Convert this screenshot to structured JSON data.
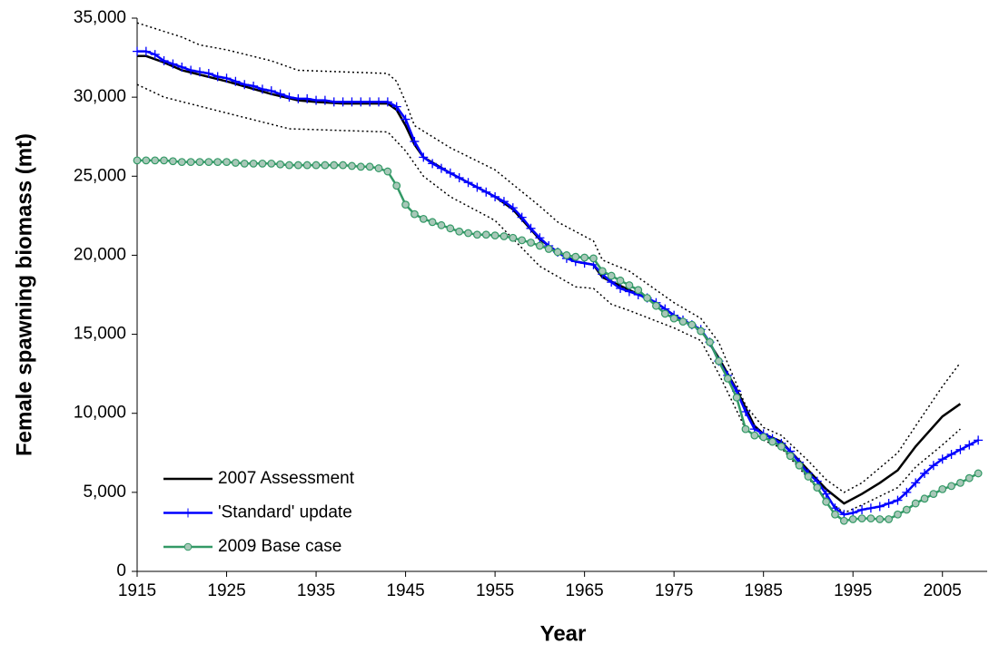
{
  "chart_data": {
    "type": "line",
    "xlabel": "Year",
    "ylabel": "Female spawning biomass (mt)",
    "x": [
      1915,
      1916,
      1917,
      1918,
      1919,
      1920,
      1921,
      1922,
      1923,
      1924,
      1925,
      1926,
      1927,
      1928,
      1929,
      1930,
      1931,
      1932,
      1933,
      1934,
      1935,
      1936,
      1937,
      1938,
      1939,
      1940,
      1941,
      1942,
      1943,
      1944,
      1945,
      1946,
      1947,
      1948,
      1949,
      1950,
      1951,
      1952,
      1953,
      1954,
      1955,
      1956,
      1957,
      1958,
      1959,
      1960,
      1961,
      1962,
      1963,
      1964,
      1965,
      1966,
      1967,
      1968,
      1969,
      1970,
      1971,
      1972,
      1973,
      1974,
      1975,
      1976,
      1977,
      1978,
      1979,
      1980,
      1981,
      1982,
      1983,
      1984,
      1985,
      1986,
      1987,
      1988,
      1989,
      1990,
      1991,
      1992,
      1993,
      1994,
      1995,
      1996,
      1997,
      1998,
      1999,
      2000,
      2001,
      2002,
      2003,
      2004,
      2005,
      2006,
      2007,
      2008,
      2009
    ],
    "xlim": [
      1915,
      2010
    ],
    "xticks": [
      1915,
      1925,
      1935,
      1945,
      1955,
      1965,
      1975,
      1985,
      1995,
      2005
    ],
    "ylim": [
      0,
      35000
    ],
    "yticks": [
      0,
      {
        "value": 5000,
        "label": "5,000"
      },
      {
        "value": 10000,
        "label": "10,000"
      },
      {
        "value": 15000,
        "label": "15,000"
      },
      {
        "value": 20000,
        "label": "20,000"
      },
      {
        "value": 25000,
        "label": "25,000"
      },
      {
        "value": 30000,
        "label": "30,000"
      },
      {
        "value": 35000,
        "label": "35,000"
      }
    ],
    "legend": "lower left",
    "series": [
      {
        "color": "#000000",
        "dash": "dotted",
        "x": [
          1915,
          1920,
          1922,
          1925,
          1930,
          1933,
          1943,
          1944,
          1945,
          1946,
          1950,
          1955,
          1960,
          1962,
          1965,
          1966,
          1967,
          1970,
          1975,
          1978,
          1980,
          1983,
          1985,
          1987,
          1990,
          1992,
          1994,
          1996,
          2000,
          2002,
          2005,
          2007
        ],
        "values": [
          34700,
          33800,
          33300,
          33000,
          32300,
          31700,
          31500,
          31000,
          29700,
          28200,
          26800,
          25400,
          23100,
          22100,
          21200,
          20900,
          19700,
          19000,
          17000,
          16000,
          14500,
          10500,
          9100,
          8600,
          7000,
          5800,
          5000,
          5600,
          7500,
          9200,
          11700,
          13200
        ]
      },
      {
        "color": "#000000",
        "dash": "dotted",
        "x": [
          1915,
          1918,
          1925,
          1932,
          1943,
          1945,
          1947,
          1950,
          1955,
          1960,
          1964,
          1966,
          1968,
          1970,
          1975,
          1978,
          1980,
          1983,
          1985,
          1987,
          1990,
          1992,
          1994,
          1996,
          2000,
          2002,
          2005,
          2007
        ],
        "values": [
          30800,
          30000,
          29000,
          28000,
          27800,
          26600,
          25000,
          23700,
          22200,
          19300,
          18000,
          17900,
          16900,
          16500,
          15400,
          14600,
          12500,
          9000,
          8300,
          7800,
          5900,
          4600,
          3700,
          4200,
          5300,
          6600,
          8000,
          9000
        ]
      },
      {
        "name": "2007 Assessment",
        "color": "#000000",
        "x": [
          1915,
          1916,
          1918,
          1920,
          1925,
          1930,
          1933,
          1935,
          1938,
          1943,
          1944,
          1945,
          1946,
          1947,
          1950,
          1955,
          1957,
          1960,
          1962,
          1964,
          1966,
          1967,
          1970,
          1973,
          1975,
          1978,
          1980,
          1982,
          1984,
          1985,
          1987,
          1990,
          1992,
          1994,
          1996,
          1998,
          2000,
          2002,
          2005,
          2007
        ],
        "values": [
          32600,
          32600,
          32200,
          31700,
          31000,
          30200,
          29800,
          29700,
          29600,
          29600,
          29200,
          28200,
          27000,
          26200,
          25200,
          23700,
          22900,
          21000,
          20200,
          19600,
          19400,
          18600,
          17800,
          17000,
          16200,
          15300,
          13500,
          11500,
          9200,
          8700,
          8200,
          6400,
          5200,
          4300,
          4900,
          5600,
          6400,
          7900,
          9800,
          10600
        ]
      },
      {
        "name": "'Standard' update",
        "color": "#0000ff",
        "marker": "plus",
        "values": [
          32900,
          32900,
          32700,
          32300,
          32100,
          31900,
          31700,
          31600,
          31500,
          31300,
          31200,
          31000,
          30800,
          30700,
          30500,
          30400,
          30200,
          30000,
          29900,
          29900,
          29800,
          29800,
          29700,
          29700,
          29700,
          29700,
          29700,
          29700,
          29700,
          29400,
          28600,
          27200,
          26200,
          25800,
          25500,
          25200,
          24900,
          24600,
          24300,
          24000,
          23700,
          23400,
          23000,
          22400,
          21700,
          21100,
          20600,
          20200,
          19800,
          19600,
          19500,
          19400,
          18800,
          18300,
          17900,
          17700,
          17500,
          17300,
          17000,
          16600,
          16200,
          15900,
          15600,
          15300,
          14500,
          13300,
          12400,
          11400,
          10100,
          9000,
          8700,
          8400,
          8100,
          7600,
          6900,
          6200,
          5700,
          4900,
          4000,
          3600,
          3700,
          3900,
          4000,
          4100,
          4300,
          4500,
          5000,
          5600,
          6200,
          6700,
          7100,
          7400,
          7700,
          8000,
          8300
        ]
      },
      {
        "name": "2009 Base case",
        "color": "#339966",
        "marker": "circle",
        "marker_fill": "#a8c8b8",
        "values": [
          26000,
          26000,
          26000,
          26000,
          25950,
          25900,
          25900,
          25900,
          25900,
          25900,
          25900,
          25850,
          25800,
          25800,
          25800,
          25800,
          25750,
          25700,
          25700,
          25700,
          25700,
          25700,
          25700,
          25700,
          25650,
          25600,
          25600,
          25500,
          25300,
          24400,
          23200,
          22600,
          22300,
          22100,
          21900,
          21700,
          21500,
          21400,
          21300,
          21300,
          21250,
          21200,
          21100,
          20950,
          20800,
          20600,
          20400,
          20200,
          20000,
          19900,
          19850,
          19800,
          19000,
          18700,
          18400,
          18100,
          17800,
          17300,
          16800,
          16300,
          16000,
          15800,
          15600,
          15200,
          14500,
          13300,
          12200,
          11000,
          9000,
          8600,
          8500,
          8200,
          7900,
          7300,
          6700,
          6000,
          5300,
          4400,
          3600,
          3200,
          3300,
          3350,
          3350,
          3300,
          3300,
          3600,
          3900,
          4300,
          4600,
          4900,
          5200,
          5400,
          5600,
          5900,
          6200
        ]
      }
    ]
  }
}
